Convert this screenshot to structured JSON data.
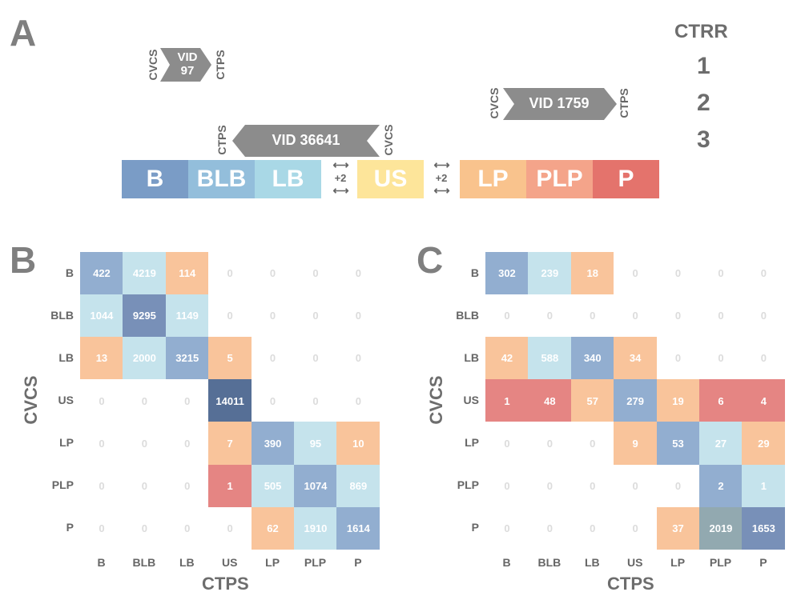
{
  "panel_a": {
    "letter": "A",
    "ctrr_title": "CTRR",
    "ctrr_levels": [
      "1",
      "2",
      "3"
    ],
    "vids": [
      {
        "line1": "VID",
        "line2": "97",
        "left_label": "CVCS",
        "right_label": "CTPS",
        "direction": "right"
      },
      {
        "line1": "VID 1759",
        "line2": "",
        "left_label": "CVCS",
        "right_label": "CTPS",
        "direction": "right"
      },
      {
        "line1": "VID 36641",
        "line2": "",
        "left_label": "CTPS",
        "right_label": "CVCS",
        "direction": "left"
      }
    ],
    "categories": [
      {
        "label": "B",
        "color": "#7a9cc6"
      },
      {
        "label": "BLB",
        "color": "#93bedb"
      },
      {
        "label": "LB",
        "color": "#a9d8e6"
      },
      {
        "label": "US",
        "color": "#fde59a"
      },
      {
        "label": "LP",
        "color": "#f9c38d"
      },
      {
        "label": "PLP",
        "color": "#f4a48a"
      },
      {
        "label": "P",
        "color": "#e4736c"
      }
    ],
    "shift_label": "+2"
  },
  "colors": {
    "zero": "#ffffff",
    "light_blue": "#c5e3ec",
    "mid_blue": "#92aed0",
    "dark_blue": "#7890b8",
    "navy": "#566f96",
    "orange": "#f9c49b",
    "red": "#e58583",
    "grey_green": "#92a9b0"
  },
  "heatmaps": [
    {
      "letter": "B",
      "xlabel": "CTPS",
      "ylabel": "CVCS",
      "rows": [
        "B",
        "BLB",
        "LB",
        "US",
        "LP",
        "PLP",
        "P"
      ],
      "cols": [
        "B",
        "BLB",
        "LB",
        "US",
        "LP",
        "PLP",
        "P"
      ],
      "values": [
        [
          "422",
          "4219",
          "114",
          "0",
          "0",
          "0",
          "0"
        ],
        [
          "1044",
          "9295",
          "1149",
          "0",
          "0",
          "0",
          "0"
        ],
        [
          "13",
          "2000",
          "3215",
          "5",
          "0",
          "0",
          "0"
        ],
        [
          "0",
          "0",
          "0",
          "14011",
          "0",
          "0",
          "0"
        ],
        [
          "0",
          "0",
          "0",
          "7",
          "390",
          "95",
          "10"
        ],
        [
          "0",
          "0",
          "0",
          "1",
          "505",
          "1074",
          "869"
        ],
        [
          "0",
          "0",
          "0",
          "0",
          "62",
          "1910",
          "1614"
        ]
      ],
      "cell_colors": [
        [
          "mid_blue",
          "light_blue",
          "orange",
          "zero",
          "zero",
          "zero",
          "zero"
        ],
        [
          "light_blue",
          "dark_blue",
          "light_blue",
          "zero",
          "zero",
          "zero",
          "zero"
        ],
        [
          "orange",
          "light_blue",
          "mid_blue",
          "orange",
          "zero",
          "zero",
          "zero"
        ],
        [
          "zero",
          "zero",
          "zero",
          "navy",
          "zero",
          "zero",
          "zero"
        ],
        [
          "zero",
          "zero",
          "zero",
          "orange",
          "mid_blue",
          "light_blue",
          "orange"
        ],
        [
          "zero",
          "zero",
          "zero",
          "red",
          "light_blue",
          "mid_blue",
          "light_blue"
        ],
        [
          "zero",
          "zero",
          "zero",
          "zero",
          "orange",
          "light_blue",
          "mid_blue"
        ]
      ]
    },
    {
      "letter": "C",
      "xlabel": "CTPS",
      "ylabel": "CVCS",
      "rows": [
        "B",
        "BLB",
        "LB",
        "US",
        "LP",
        "PLP",
        "P"
      ],
      "cols": [
        "B",
        "BLB",
        "LB",
        "US",
        "LP",
        "PLP",
        "P"
      ],
      "values": [
        [
          "302",
          "239",
          "18",
          "0",
          "0",
          "0",
          "0"
        ],
        [
          "0",
          "0",
          "0",
          "0",
          "0",
          "0",
          "0"
        ],
        [
          "42",
          "588",
          "340",
          "34",
          "0",
          "0",
          "0"
        ],
        [
          "1",
          "48",
          "57",
          "279",
          "19",
          "6",
          "4"
        ],
        [
          "0",
          "0",
          "0",
          "9",
          "53",
          "27",
          "29"
        ],
        [
          "0",
          "0",
          "0",
          "0",
          "0",
          "2",
          "1"
        ],
        [
          "0",
          "0",
          "0",
          "0",
          "37",
          "2019",
          "1653"
        ]
      ],
      "cell_colors": [
        [
          "mid_blue",
          "light_blue",
          "orange",
          "zero",
          "zero",
          "zero",
          "zero"
        ],
        [
          "zero",
          "zero",
          "zero",
          "zero",
          "zero",
          "zero",
          "zero"
        ],
        [
          "orange",
          "light_blue",
          "mid_blue",
          "orange",
          "zero",
          "zero",
          "zero"
        ],
        [
          "red",
          "red",
          "orange",
          "mid_blue",
          "orange",
          "red",
          "red"
        ],
        [
          "zero",
          "zero",
          "zero",
          "orange",
          "mid_blue",
          "light_blue",
          "orange"
        ],
        [
          "zero",
          "zero",
          "zero",
          "zero",
          "zero",
          "mid_blue",
          "light_blue"
        ],
        [
          "zero",
          "zero",
          "zero",
          "zero",
          "orange",
          "grey_green",
          "dark_blue"
        ]
      ]
    }
  ]
}
